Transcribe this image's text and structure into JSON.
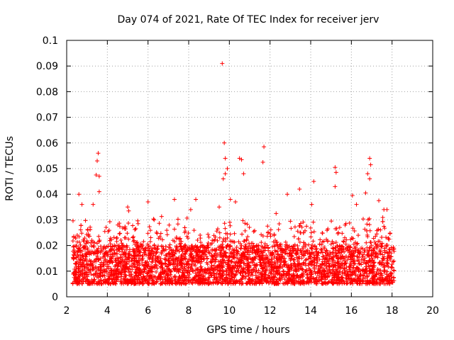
{
  "chart_data": {
    "type": "scatter",
    "title": "Day 074 of 2021, Rate Of TEC Index for receiver jerv",
    "xlabel": "GPS time / hours",
    "ylabel": "ROTI / TECUs",
    "xlim": [
      2,
      20
    ],
    "ylim": [
      0,
      0.1
    ],
    "x_ticks": [
      2,
      4,
      6,
      8,
      10,
      12,
      14,
      16,
      18,
      20
    ],
    "y_ticks": [
      0,
      0.01,
      0.02,
      0.03,
      0.04,
      0.05,
      0.06,
      0.07,
      0.08,
      0.09,
      0.1
    ],
    "x_tick_labels": [
      "2",
      "4",
      "6",
      "8",
      "10",
      "12",
      "14",
      "16",
      "18",
      "20"
    ],
    "y_tick_labels": [
      "0",
      "0.01",
      "0.02",
      "0.03",
      "0.04",
      "0.05",
      "0.06",
      "0.07",
      "0.08",
      "0.09",
      "0.1"
    ],
    "grid": true,
    "marker": "+",
    "color": "#ff0000",
    "data_extent_hours": [
      2.3,
      18.1
    ],
    "baseline_range": [
      0.005,
      0.02
    ],
    "series": [
      {
        "name": "ROTI",
        "points": [
          [
            9.65,
            0.091
          ],
          [
            9.75,
            0.06
          ],
          [
            11.7,
            0.0585
          ],
          [
            11.65,
            0.0525
          ],
          [
            3.55,
            0.056
          ],
          [
            3.5,
            0.053
          ],
          [
            3.45,
            0.0475
          ],
          [
            3.6,
            0.047
          ],
          [
            9.8,
            0.054
          ],
          [
            9.9,
            0.05
          ],
          [
            9.8,
            0.048
          ],
          [
            9.7,
            0.046
          ],
          [
            10.5,
            0.054
          ],
          [
            10.6,
            0.0535
          ],
          [
            10.7,
            0.048
          ],
          [
            15.2,
            0.0505
          ],
          [
            15.25,
            0.0485
          ],
          [
            15.2,
            0.043
          ],
          [
            16.9,
            0.054
          ],
          [
            16.95,
            0.0515
          ],
          [
            16.8,
            0.048
          ],
          [
            16.9,
            0.046
          ],
          [
            14.15,
            0.045
          ],
          [
            13.45,
            0.042
          ],
          [
            16.05,
            0.0395
          ],
          [
            16.7,
            0.0405
          ],
          [
            2.6,
            0.04
          ],
          [
            3.6,
            0.041
          ],
          [
            2.75,
            0.036
          ],
          [
            3.3,
            0.036
          ],
          [
            7.3,
            0.038
          ],
          [
            8.35,
            0.038
          ],
          [
            12.85,
            0.04
          ],
          [
            17.6,
            0.034
          ],
          [
            5.0,
            0.035
          ],
          [
            5.05,
            0.0335
          ],
          [
            6.0,
            0.037
          ],
          [
            8.1,
            0.034
          ],
          [
            9.5,
            0.035
          ],
          [
            10.05,
            0.038
          ],
          [
            10.3,
            0.037
          ],
          [
            12.3,
            0.0325
          ],
          [
            14.05,
            0.036
          ],
          [
            16.25,
            0.036
          ],
          [
            17.35,
            0.0375
          ],
          [
            17.75,
            0.034
          ]
        ]
      }
    ]
  }
}
